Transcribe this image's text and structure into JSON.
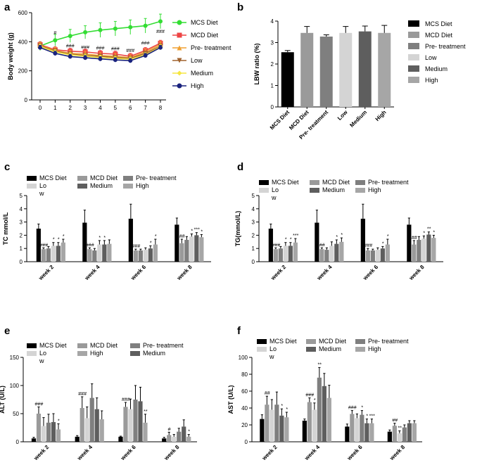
{
  "figure": {
    "panel_letters": [
      "a",
      "b",
      "c",
      "d",
      "e",
      "f"
    ]
  },
  "chart_data": [
    {
      "panel": "a",
      "type": "line",
      "xlabel": "",
      "ylabel": "Body weight (g)",
      "x": [
        0,
        1,
        2,
        3,
        4,
        5,
        6,
        7,
        8
      ],
      "ylim": [
        0,
        600
      ],
      "yticks": [
        0,
        200,
        400,
        600
      ],
      "series": [
        {
          "name": "MCS Diet",
          "color": "#33dd33",
          "marker": "circle",
          "values": [
            370,
            410,
            440,
            465,
            480,
            490,
            500,
            510,
            540
          ],
          "err": [
            30,
            40,
            45,
            45,
            50,
            50,
            50,
            50,
            50
          ]
        },
        {
          "name": "MCD Diet",
          "color": "#ee4444",
          "marker": "square",
          "values": [
            380,
            345,
            335,
            330,
            320,
            315,
            300,
            340,
            390
          ],
          "err": [
            20,
            20,
            20,
            20,
            20,
            20,
            20,
            20,
            20
          ]
        },
        {
          "name": "Pre- treatment",
          "color": "#f0a030",
          "marker": "triangle-up",
          "values": [
            375,
            340,
            320,
            315,
            305,
            300,
            290,
            330,
            380
          ],
          "err": [
            20,
            20,
            20,
            20,
            20,
            20,
            20,
            20,
            20
          ]
        },
        {
          "name": "Low",
          "color": "#a0622d",
          "marker": "triangle-down",
          "values": [
            372,
            335,
            315,
            305,
            300,
            292,
            285,
            320,
            370
          ],
          "err": [
            15,
            15,
            15,
            15,
            15,
            15,
            15,
            15,
            15
          ]
        },
        {
          "name": "Medium",
          "color": "#f5e642",
          "marker": "diamond",
          "values": [
            368,
            330,
            310,
            300,
            292,
            285,
            280,
            310,
            365
          ],
          "err": [
            15,
            15,
            15,
            15,
            15,
            15,
            15,
            15,
            15
          ]
        },
        {
          "name": "High",
          "color": "#1a237e",
          "marker": "circle",
          "values": [
            360,
            320,
            298,
            290,
            282,
            275,
            270,
            305,
            360
          ],
          "err": [
            15,
            15,
            15,
            15,
            15,
            15,
            15,
            15,
            15
          ]
        }
      ],
      "annotations": [
        {
          "x": 1,
          "y": 450,
          "text": "#"
        },
        {
          "x": 2,
          "y": 360,
          "text": "###"
        },
        {
          "x": 3,
          "y": 350,
          "text": "###"
        },
        {
          "x": 4,
          "y": 345,
          "text": "###"
        },
        {
          "x": 5,
          "y": 340,
          "text": "###"
        },
        {
          "x": 6,
          "y": 330,
          "text": "###"
        },
        {
          "x": 7,
          "y": 380,
          "text": "###"
        },
        {
          "x": 8,
          "y": 460,
          "text": "###"
        }
      ]
    },
    {
      "panel": "b",
      "type": "bar",
      "ylabel": "LBW ratio (%)",
      "categories": [
        "MCS Diet",
        "MCD Diet",
        "Pre- treatment",
        "Low",
        "Medium",
        "High"
      ],
      "values": [
        2.55,
        3.45,
        3.28,
        3.45,
        3.52,
        3.45
      ],
      "err": [
        0.08,
        0.3,
        0.08,
        0.3,
        0.25,
        0.35
      ],
      "colors": [
        "#000000",
        "#9a9a9a",
        "#7f7f7f",
        "#d4d4d4",
        "#5e5e5e",
        "#a6a6a6"
      ],
      "ylim": [
        0,
        4
      ],
      "yticks": [
        0,
        1,
        2,
        3,
        4
      ],
      "legend": [
        "MCS Diet",
        "MCD Diet",
        "Pre- treatment",
        "Low",
        "Medium",
        "High"
      ]
    },
    {
      "panel": "c",
      "type": "bar",
      "ylabel": "TC mmol/L",
      "categories": [
        "week 2",
        "week 4",
        "week 6",
        "week 8"
      ],
      "ylim": [
        0,
        5
      ],
      "yticks": [
        0,
        1,
        2,
        3,
        4,
        5
      ],
      "legend": [
        "MCS Diet",
        "Lo\nw",
        "MCD Diet",
        "Medium",
        "Pre- treatment",
        "High"
      ],
      "series": [
        {
          "name": "MCS Diet",
          "color": "#000000",
          "values": [
            2.5,
            2.95,
            3.25,
            2.8
          ],
          "err": [
            0.35,
            0.95,
            1.1,
            0.5
          ]
        },
        {
          "name": "MCD Diet",
          "color": "#9a9a9a",
          "values": [
            0.95,
            0.95,
            0.85,
            1.4
          ],
          "err": [
            0.1,
            0.1,
            0.1,
            0.3
          ]
        },
        {
          "name": "Pre- treatment",
          "color": "#7f7f7f",
          "values": [
            1.0,
            0.85,
            0.85,
            1.65
          ],
          "err": [
            0.15,
            0.15,
            0.1,
            0.25
          ]
        },
        {
          "name": "Low",
          "color": "#d4d4d4",
          "values": [
            1.2,
            1.3,
            0.9,
            1.9
          ],
          "err": [
            0.25,
            0.3,
            0.15,
            0.2
          ]
        },
        {
          "name": "Medium",
          "color": "#5e5e5e",
          "values": [
            1.2,
            1.3,
            1.0,
            2.0
          ],
          "err": [
            0.25,
            0.3,
            0.2,
            0.2
          ]
        },
        {
          "name": "High",
          "color": "#a6a6a6",
          "values": [
            1.45,
            1.35,
            1.3,
            1.85
          ],
          "err": [
            0.25,
            0.3,
            0.4,
            0.2
          ]
        }
      ],
      "annotations": [
        {
          "group": 0,
          "bar": 1,
          "text": "###"
        },
        {
          "group": 0,
          "bar": 3,
          "text": "*"
        },
        {
          "group": 0,
          "bar": 4,
          "text": "*"
        },
        {
          "group": 0,
          "bar": 5,
          "text": "*"
        },
        {
          "group": 1,
          "bar": 1,
          "text": "###"
        },
        {
          "group": 1,
          "bar": 3,
          "text": "*"
        },
        {
          "group": 1,
          "bar": 4,
          "text": "*"
        },
        {
          "group": 2,
          "bar": 1,
          "text": "###"
        },
        {
          "group": 2,
          "bar": 4,
          "text": "*"
        },
        {
          "group": 2,
          "bar": 5,
          "text": "*"
        },
        {
          "group": 3,
          "bar": 1,
          "text": "##"
        },
        {
          "group": 3,
          "bar": 3,
          "text": "*"
        },
        {
          "group": 3,
          "bar": 4,
          "text": "***"
        },
        {
          "group": 3,
          "bar": 5,
          "text": "*"
        }
      ]
    },
    {
      "panel": "d",
      "type": "bar",
      "ylabel": "TG(mmol/L)",
      "categories": [
        "week 2",
        "week 4",
        "week 6",
        "week 8"
      ],
      "ylim": [
        0,
        5
      ],
      "yticks": [
        0,
        1,
        2,
        3,
        4,
        5
      ],
      "legend": [
        "MCS Diet",
        "Lo\nw",
        "MCD Diet",
        "Medium",
        "Pre- treatment",
        "High"
      ],
      "series": [
        {
          "name": "MCS Diet",
          "color": "#000000",
          "values": [
            2.5,
            2.95,
            3.25,
            2.8
          ],
          "err": [
            0.35,
            0.95,
            1.1,
            0.5
          ]
        },
        {
          "name": "MCD Diet",
          "color": "#9a9a9a",
          "values": [
            0.95,
            0.95,
            0.85,
            1.3
          ],
          "err": [
            0.1,
            0.1,
            0.15,
            0.3
          ]
        },
        {
          "name": "Pre- treatment",
          "color": "#7f7f7f",
          "values": [
            1.0,
            0.9,
            0.85,
            1.65
          ],
          "err": [
            0.15,
            0.15,
            0.1,
            0.25
          ]
        },
        {
          "name": "Low",
          "color": "#d4d4d4",
          "values": [
            1.2,
            1.2,
            0.9,
            1.75
          ],
          "err": [
            0.25,
            0.3,
            0.15,
            0.2
          ]
        },
        {
          "name": "Medium",
          "color": "#5e5e5e",
          "values": [
            1.2,
            1.35,
            1.0,
            2.05
          ],
          "err": [
            0.25,
            0.3,
            0.15,
            0.2
          ]
        },
        {
          "name": "High",
          "color": "#a6a6a6",
          "values": [
            1.45,
            1.5,
            1.3,
            1.8
          ],
          "err": [
            0.3,
            0.3,
            0.4,
            0.2
          ]
        }
      ],
      "annotations": [
        {
          "group": 0,
          "bar": 1,
          "text": "###"
        },
        {
          "group": 0,
          "bar": 3,
          "text": "*"
        },
        {
          "group": 0,
          "bar": 4,
          "text": "*"
        },
        {
          "group": 0,
          "bar": 5,
          "text": "***"
        },
        {
          "group": 1,
          "bar": 1,
          "text": "##"
        },
        {
          "group": 1,
          "bar": 4,
          "text": "*"
        },
        {
          "group": 1,
          "bar": 5,
          "text": "*"
        },
        {
          "group": 2,
          "bar": 1,
          "text": "###"
        },
        {
          "group": 2,
          "bar": 4,
          "text": "*"
        },
        {
          "group": 2,
          "bar": 5,
          "text": "*"
        },
        {
          "group": 3,
          "bar": 1,
          "text": "##"
        },
        {
          "group": 3,
          "bar": 3,
          "text": "*"
        },
        {
          "group": 3,
          "bar": 4,
          "text": "**"
        },
        {
          "group": 3,
          "bar": 5,
          "text": "*"
        }
      ]
    },
    {
      "panel": "e",
      "type": "bar",
      "ylabel": "ALT (U/L)",
      "categories": [
        "week 2",
        "week 4",
        "week 6",
        "week 8"
      ],
      "ylim": [
        0,
        150
      ],
      "yticks": [
        0,
        50,
        100,
        150
      ],
      "legend": [
        "MCS Diet",
        "Lo\nw",
        "MCD Diet",
        "High",
        "Pre- treatment",
        "Medium"
      ],
      "series": [
        {
          "name": "MCS Diet",
          "color": "#000000",
          "values": [
            6,
            9,
            9,
            6
          ],
          "err": [
            2,
            2,
            1,
            2
          ]
        },
        {
          "name": "MCD Diet",
          "color": "#9a9a9a",
          "values": [
            50,
            60,
            62,
            12
          ],
          "err": [
            12,
            20,
            8,
            5
          ]
        },
        {
          "name": "Low",
          "color": "#d4d4d4",
          "values": [
            28,
            42,
            58,
            9
          ],
          "err": [
            15,
            20,
            18,
            4
          ]
        },
        {
          "name": "Pre- treatment",
          "color": "#7f7f7f",
          "values": [
            34,
            78,
            75,
            18
          ],
          "err": [
            15,
            25,
            25,
            6
          ]
        },
        {
          "name": "Medium",
          "color": "#5e5e5e",
          "values": [
            35,
            58,
            72,
            27
          ],
          "err": [
            15,
            20,
            25,
            12
          ]
        },
        {
          "name": "High",
          "color": "#a6a6a6",
          "values": [
            22,
            40,
            34,
            9
          ],
          "err": [
            10,
            15,
            15,
            4
          ]
        }
      ],
      "annotations": [
        {
          "group": 0,
          "bar": 1,
          "text": "###"
        },
        {
          "group": 0,
          "bar": 5,
          "text": "*"
        },
        {
          "group": 1,
          "bar": 1,
          "text": "###"
        },
        {
          "group": 2,
          "bar": 1,
          "text": "###"
        },
        {
          "group": 2,
          "bar": 5,
          "text": "**"
        },
        {
          "group": 3,
          "bar": 1,
          "text": "#"
        },
        {
          "group": 3,
          "bar": 5,
          "text": "*"
        }
      ]
    },
    {
      "panel": "f",
      "type": "bar",
      "ylabel": "AST (U/L)",
      "categories": [
        "week 2",
        "week 4",
        "week 6",
        "week 8"
      ],
      "ylim": [
        0,
        100
      ],
      "yticks": [
        0,
        20,
        40,
        60,
        80,
        100
      ],
      "legend": [
        "MCS Diet",
        "Lo\nw",
        "MCD Diet",
        "Medium",
        "Pre- treatment",
        "High"
      ],
      "series": [
        {
          "name": "MCS Diet",
          "color": "#000000",
          "values": [
            27,
            25,
            18,
            12
          ],
          "err": [
            5,
            2,
            3,
            2
          ]
        },
        {
          "name": "MCD Diet",
          "color": "#9a9a9a",
          "values": [
            44,
            47,
            33,
            19
          ],
          "err": [
            10,
            5,
            4,
            3
          ]
        },
        {
          "name": "Low",
          "color": "#d4d4d4",
          "values": [
            38,
            38,
            28,
            10
          ],
          "err": [
            12,
            8,
            5,
            3
          ]
        },
        {
          "name": "Pre- treatment",
          "color": "#7f7f7f",
          "values": [
            44,
            76,
            32,
            17
          ],
          "err": [
            15,
            12,
            5,
            3
          ]
        },
        {
          "name": "Medium",
          "color": "#5e5e5e",
          "values": [
            31,
            66,
            22,
            22
          ],
          "err": [
            8,
            15,
            5,
            3
          ]
        },
        {
          "name": "High",
          "color": "#a6a6a6",
          "values": [
            29,
            52,
            22,
            22
          ],
          "err": [
            6,
            15,
            5,
            3
          ]
        }
      ],
      "annotations": [
        {
          "group": 0,
          "bar": 1,
          "text": "##"
        },
        {
          "group": 0,
          "bar": 4,
          "text": "*"
        },
        {
          "group": 0,
          "bar": 5,
          "text": "*"
        },
        {
          "group": 1,
          "bar": 1,
          "text": "###"
        },
        {
          "group": 1,
          "bar": 2,
          "text": "*"
        },
        {
          "group": 1,
          "bar": 3,
          "text": "**"
        },
        {
          "group": 2,
          "bar": 1,
          "text": "###"
        },
        {
          "group": 2,
          "bar": 3,
          "text": "*"
        },
        {
          "group": 2,
          "bar": 4,
          "text": "*"
        },
        {
          "group": 2,
          "bar": 5,
          "text": "***"
        },
        {
          "group": 3,
          "bar": 1,
          "text": "##"
        },
        {
          "group": 3,
          "bar": 2,
          "text": "**"
        }
      ]
    }
  ]
}
